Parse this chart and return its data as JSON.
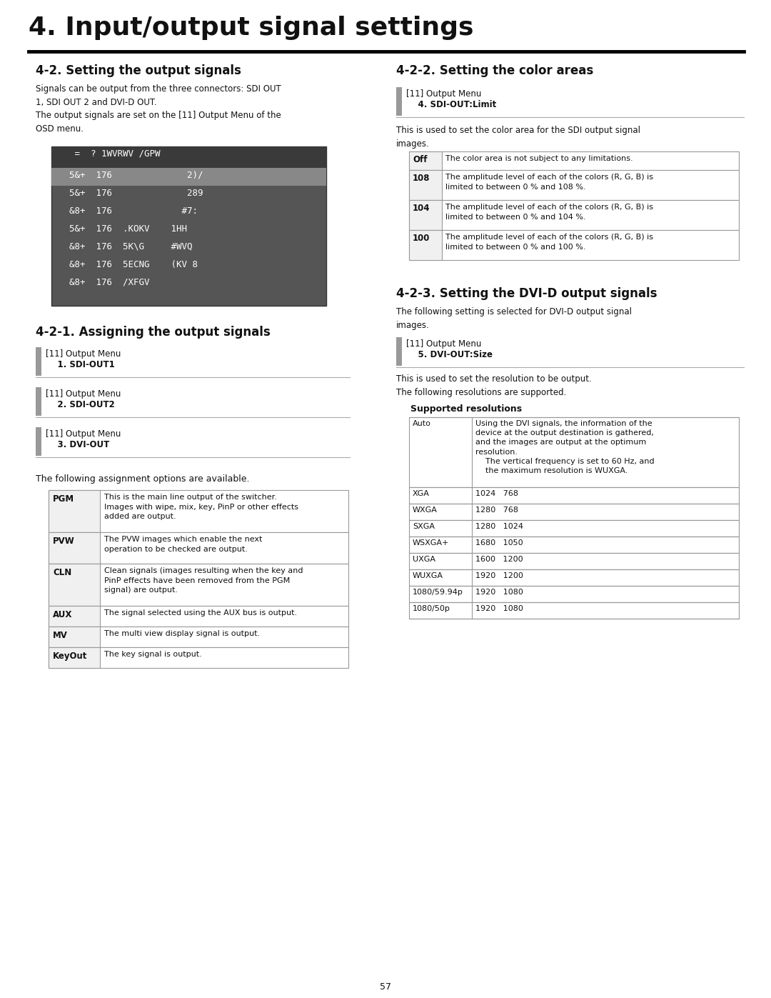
{
  "page_title": "4. Input/output signal settings",
  "page_number": "57",
  "bg_color": "#ffffff",
  "left_col": {
    "section_title": "4-2. Setting the output signals",
    "intro_text": "Signals can be output from the three connectors: SDI OUT\n1, SDI OUT 2 and DVI-D OUT.\nThe output signals are set on the [11] Output Menu of the\nOSD menu.",
    "osd_screen": {
      "bg": "#555555",
      "header_bg": "#444444",
      "highlight_bg": "#888888",
      "header_text": "   =  ? 1WVRWV /GPW",
      "rows": [
        {
          "text": "  5&+  176              2)/",
          "highlight": true
        },
        {
          "text": "  5&+  176              289",
          "highlight": false
        },
        {
          "text": "  &8+  176             #7:",
          "highlight": false
        },
        {
          "text": "  5&+  176  .KOKV    1HH",
          "highlight": false
        },
        {
          "text": "  &8+  176  5K\\G     #WVQ",
          "highlight": false
        },
        {
          "text": "  &8+  176  5ECNG    (KV 8",
          "highlight": false
        },
        {
          "text": "  &8+  176  /XFGV",
          "highlight": false
        }
      ]
    },
    "subsection_title": "4-2-1. Assigning the output signals",
    "menu_boxes": [
      {
        "line1": "[11] Output Menu",
        "line2": "    1. SDI-OUT1"
      },
      {
        "line1": "[11] Output Menu",
        "line2": "    2. SDI-OUT2"
      },
      {
        "line1": "[11] Output Menu",
        "line2": "    3. DVI-OUT"
      }
    ],
    "assignment_intro": "The following assignment options are available.",
    "assignment_table": [
      {
        "key": "PGM",
        "value": "This is the main line output of the switcher.\nImages with wipe, mix, key, PinP or other effects\nadded are output."
      },
      {
        "key": "PVW",
        "value": "The PVW images which enable the next\noperation to be checked are output."
      },
      {
        "key": "CLN",
        "value": "Clean signals (images resulting when the key and\nPinP effects have been removed from the PGM\nsignal) are output."
      },
      {
        "key": "AUX",
        "value": "The signal selected using the AUX bus is output."
      },
      {
        "key": "MV",
        "value": "The multi view display signal is output."
      },
      {
        "key": "KeyOut",
        "value": "The key signal is output."
      }
    ]
  },
  "right_col": {
    "section_title": "4-2-2. Setting the color areas",
    "menu_box": {
      "line1": "[11] Output Menu",
      "line2": "    4. SDI-OUT:Limit"
    },
    "color_intro": "This is used to set the color area for the SDI output signal\nimages.",
    "color_table": [
      {
        "key": "Off",
        "value": "The color area is not subject to any limitations."
      },
      {
        "key": "108",
        "value": "The amplitude level of each of the colors (R, G, B) is\nlimited to between 0 % and 108 %."
      },
      {
        "key": "104",
        "value": "The amplitude level of each of the colors (R, G, B) is\nlimited to between 0 % and 104 %."
      },
      {
        "key": "100",
        "value": "The amplitude level of each of the colors (R, G, B) is\nlimited to between 0 % and 100 %."
      }
    ],
    "dvi_section_title": "4-2-3. Setting the DVI-D output signals",
    "dvi_intro": "The following setting is selected for DVI-D output signal\nimages.",
    "dvi_menu_box": {
      "line1": "[11] Output Menu",
      "line2": "    5. DVI-OUT:Size"
    },
    "dvi_text": "This is used to set the resolution to be output.\nThe following resolutions are supported.",
    "resolution_title": "Supported resolutions",
    "resolution_table": [
      {
        "key": "Auto",
        "value": "Using the DVI signals, the information of the\ndevice at the output destination is gathered,\nand the images are output at the optimum\nresolution.\n    The vertical frequency is set to 60 Hz, and\n    the maximum resolution is WUXGA."
      },
      {
        "key": "XGA",
        "value": "1024   768"
      },
      {
        "key": "WXGA",
        "value": "1280   768"
      },
      {
        "key": "SXGA",
        "value": "1280   1024"
      },
      {
        "key": "WSXGA+",
        "value": "1680   1050"
      },
      {
        "key": "UXGA",
        "value": "1600   1200"
      },
      {
        "key": "WUXGA",
        "value": "1920   1200"
      },
      {
        "key": "1080/59.94p",
        "value": "1920   1080"
      },
      {
        "key": "1080/50p",
        "value": "1920   1080"
      }
    ]
  }
}
